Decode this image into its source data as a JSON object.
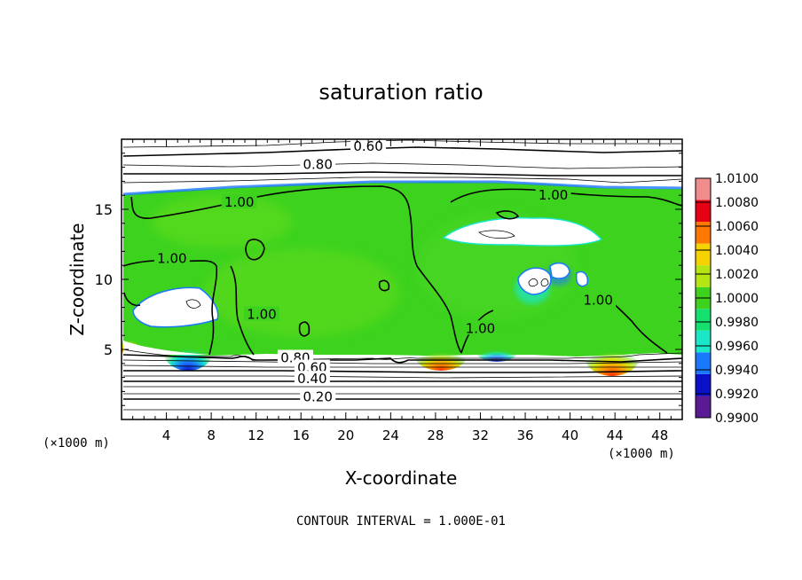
{
  "chart_data": {
    "type": "heatmap",
    "title": "saturation ratio",
    "xlabel": "X-coordinate",
    "ylabel": "Z-coordinate",
    "x_unit_label": "(×1000 m)",
    "x_unit_label_right": "(×1000 m)",
    "footer": "CONTOUR INTERVAL = 1.000E-01",
    "xlim": [
      0,
      50
    ],
    "ylim": [
      0,
      20
    ],
    "x_ticks": [
      4,
      8,
      12,
      16,
      20,
      24,
      28,
      32,
      36,
      40,
      44,
      48
    ],
    "y_ticks": [
      5,
      10,
      15
    ],
    "colorbar": {
      "levels": [
        "0.9900",
        "0.9920",
        "0.9940",
        "0.9960",
        "0.9980",
        "1.0000",
        "1.0020",
        "1.0040",
        "1.0060",
        "1.0080",
        "1.0100"
      ],
      "colors": [
        "#5a1a96",
        "#0a10c8",
        "#1a78ff",
        "#1ae6c8",
        "#14e06e",
        "#3cd21e",
        "#b4e614",
        "#f5d200",
        "#ff7800",
        "#e60014",
        "#f08c8c"
      ]
    },
    "contour_labels": [
      {
        "text": "0.60",
        "x": 22.0,
        "y": 19.5
      },
      {
        "text": "0.80",
        "x": 17.5,
        "y": 18.2
      },
      {
        "text": "1.00",
        "x": 10.5,
        "y": 15.5
      },
      {
        "text": "1.00",
        "x": 4.5,
        "y": 11.5
      },
      {
        "text": "1.00",
        "x": 12.5,
        "y": 7.5
      },
      {
        "text": "1.00",
        "x": 32.0,
        "y": 6.5
      },
      {
        "text": "1.00",
        "x": 42.5,
        "y": 8.5
      },
      {
        "text": "1.00",
        "x": 38.5,
        "y": 16.0
      },
      {
        "text": "0.80",
        "x": 15.5,
        "y": 4.4
      },
      {
        "text": "0.60",
        "x": 17.0,
        "y": 3.7
      },
      {
        "text": "0.40",
        "x": 17.0,
        "y": 2.9
      },
      {
        "text": "0.20",
        "x": 17.5,
        "y": 1.6
      }
    ]
  }
}
